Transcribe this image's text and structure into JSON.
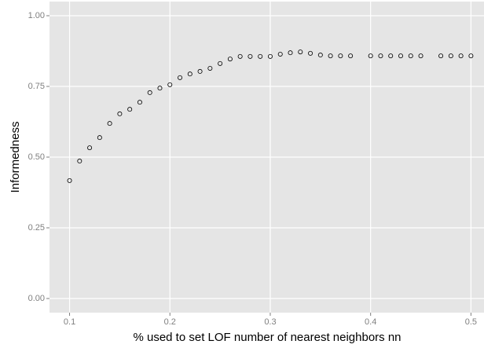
{
  "chart_data": {
    "type": "scatter",
    "x_label": "% used to set LOF number of nearest neighbors nn",
    "y_label": "Informedness",
    "x": [
      0.1,
      0.11,
      0.12,
      0.13,
      0.14,
      0.15,
      0.16,
      0.17,
      0.18,
      0.19,
      0.2,
      0.21,
      0.22,
      0.23,
      0.24,
      0.25,
      0.26,
      0.27,
      0.28,
      0.29,
      0.3,
      0.31,
      0.32,
      0.33,
      0.34,
      0.35,
      0.36,
      0.37,
      0.38,
      0.4,
      0.41,
      0.42,
      0.43,
      0.44,
      0.45,
      0.47,
      0.48,
      0.49,
      0.5
    ],
    "values": [
      0.417,
      0.486,
      0.533,
      0.569,
      0.619,
      0.653,
      0.669,
      0.694,
      0.728,
      0.744,
      0.756,
      0.781,
      0.794,
      0.803,
      0.814,
      0.831,
      0.847,
      0.856,
      0.856,
      0.856,
      0.856,
      0.864,
      0.869,
      0.872,
      0.867,
      0.861,
      0.858,
      0.858,
      0.858,
      0.858,
      0.858,
      0.858,
      0.858,
      0.858,
      0.858,
      0.858,
      0.858,
      0.858,
      0.858
    ],
    "color": "#000000",
    "xlim": [
      0.08,
      0.513
    ],
    "ylim": [
      -0.05,
      1.05
    ],
    "xticks": [
      0.1,
      0.2,
      0.3,
      0.4,
      0.5
    ],
    "yticks": [
      {
        "value": 0,
        "label": "0.00"
      },
      {
        "value": 0.25,
        "label": "0.25"
      },
      {
        "value": 0.5,
        "label": "0.50"
      },
      {
        "value": 0.75,
        "label": "0.75"
      },
      {
        "value": 1,
        "label": "1.00"
      }
    ],
    "grid": true
  }
}
